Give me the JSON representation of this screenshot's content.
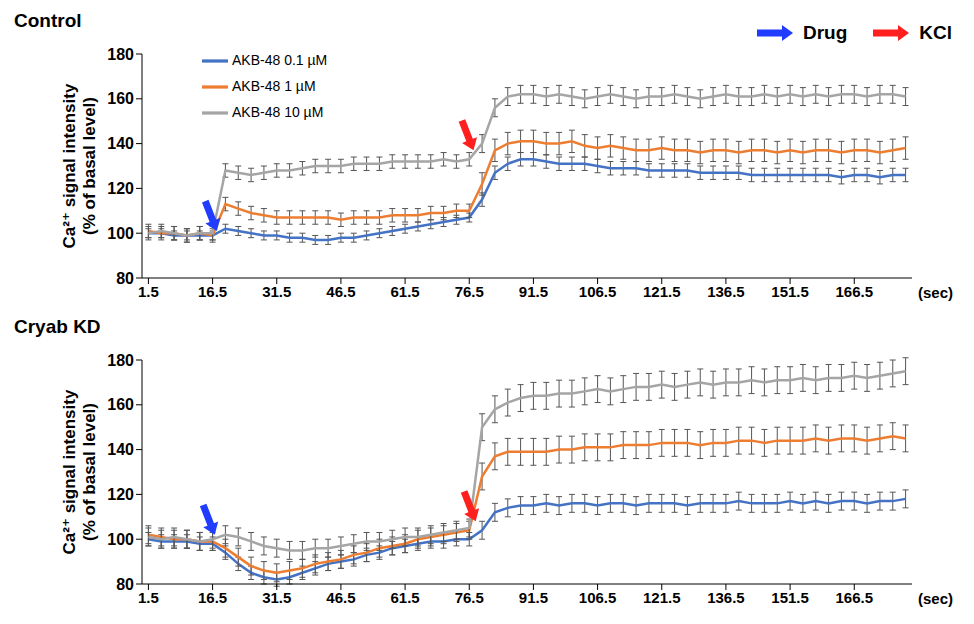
{
  "chart_data": [
    {
      "type": "line",
      "title": "Control",
      "x": [
        1.5,
        4.5,
        7.5,
        10.5,
        13.5,
        16.5,
        19.5,
        22.5,
        25.5,
        28.5,
        31.5,
        34.5,
        37.5,
        40.5,
        43.5,
        46.5,
        49.5,
        52.5,
        55.5,
        58.5,
        61.5,
        64.5,
        67.5,
        70.5,
        73.5,
        76.5,
        79.5,
        82.5,
        85.5,
        88.5,
        91.5,
        94.5,
        97.5,
        100.5,
        103.5,
        106.5,
        109.5,
        112.5,
        115.5,
        118.5,
        121.5,
        124.5,
        127.5,
        130.5,
        133.5,
        136.5,
        139.5,
        142.5,
        145.5,
        148.5,
        151.5,
        154.5,
        157.5,
        160.5,
        163.5,
        166.5,
        169.5,
        172.5,
        175.5,
        178.5
      ],
      "xlim": [
        0,
        180
      ],
      "xticks": [
        1.5,
        16.5,
        31.5,
        46.5,
        61.5,
        76.5,
        91.5,
        106.5,
        121.5,
        136.5,
        151.5,
        166.5
      ],
      "x_label": "(sec)",
      "y_label": [
        "Ca²⁺ signal intensity",
        "(% of basal level)"
      ],
      "ylim": [
        80,
        180
      ],
      "yticks": [
        80,
        100,
        120,
        140,
        160,
        180
      ],
      "legend": "upper left",
      "series": [
        {
          "name": "AKB-48 0.1 µM",
          "color": "#4472c4",
          "values": [
            100,
            100,
            99,
            99,
            99,
            99,
            102,
            101,
            100,
            99,
            99,
            98,
            98,
            97,
            97,
            98,
            98,
            99,
            100,
            101,
            102,
            103,
            104,
            105,
            106,
            107,
            115,
            127,
            131,
            133,
            133,
            132,
            131,
            131,
            131,
            130,
            129,
            129,
            129,
            128,
            128,
            128,
            128,
            127,
            127,
            127,
            127,
            126,
            126,
            126,
            126,
            126,
            126,
            126,
            125,
            126,
            126,
            125,
            126,
            126
          ],
          "errors": [
            2,
            2,
            2,
            2,
            2,
            2,
            2,
            2,
            2,
            2,
            2,
            2,
            2,
            2,
            2,
            2,
            2,
            2,
            2,
            2,
            2,
            2,
            2,
            2,
            2,
            2,
            3,
            3,
            3,
            3,
            3,
            3,
            3,
            3,
            3,
            3,
            3,
            3,
            3,
            3,
            3,
            3,
            3,
            3,
            3,
            3,
            3,
            3,
            3,
            3,
            3,
            3,
            3,
            3,
            3,
            3,
            3,
            3,
            3,
            3
          ]
        },
        {
          "name": "AKB-48 1 µM",
          "color": "#ed7d31",
          "values": [
            101,
            100,
            100,
            99,
            100,
            99,
            113,
            111,
            109,
            108,
            107,
            107,
            107,
            107,
            107,
            106,
            107,
            107,
            107,
            108,
            108,
            108,
            109,
            109,
            110,
            110,
            122,
            137,
            140,
            141,
            141,
            140,
            140,
            141,
            139,
            138,
            139,
            138,
            137,
            137,
            138,
            137,
            137,
            136,
            137,
            137,
            136,
            137,
            137,
            136,
            137,
            136,
            137,
            137,
            136,
            137,
            137,
            136,
            137,
            138
          ],
          "errors": [
            3,
            3,
            3,
            3,
            3,
            3,
            3,
            3,
            3,
            3,
            3,
            3,
            3,
            3,
            3,
            3,
            3,
            3,
            3,
            3,
            3,
            3,
            3,
            3,
            3,
            3,
            5,
            5,
            5,
            5,
            5,
            5,
            5,
            5,
            5,
            5,
            5,
            5,
            5,
            5,
            5,
            5,
            5,
            5,
            5,
            5,
            5,
            5,
            5,
            5,
            5,
            5,
            5,
            5,
            5,
            5,
            5,
            5,
            5,
            5
          ]
        },
        {
          "name": "AKB-48 10 µM",
          "color": "#a5a5a5",
          "values": [
            100,
            101,
            100,
            99,
            100,
            100,
            128,
            127,
            126,
            127,
            128,
            128,
            129,
            130,
            130,
            130,
            131,
            131,
            131,
            132,
            132,
            132,
            132,
            133,
            132,
            133,
            140,
            156,
            161,
            162,
            162,
            161,
            162,
            161,
            160,
            161,
            162,
            161,
            160,
            161,
            161,
            162,
            161,
            160,
            161,
            162,
            161,
            161,
            162,
            161,
            162,
            161,
            162,
            161,
            162,
            162,
            161,
            162,
            162,
            161
          ],
          "errors": [
            3,
            3,
            3,
            3,
            3,
            3,
            3,
            3,
            3,
            3,
            3,
            3,
            3,
            3,
            3,
            3,
            3,
            3,
            3,
            3,
            3,
            3,
            3,
            3,
            3,
            3,
            4,
            4,
            4,
            4,
            4,
            4,
            4,
            4,
            4,
            4,
            4,
            4,
            4,
            4,
            4,
            4,
            4,
            4,
            4,
            4,
            4,
            4,
            4,
            4,
            4,
            4,
            4,
            4,
            4,
            4,
            4,
            4,
            4,
            4
          ]
        }
      ],
      "events": [
        {
          "marker": "Drug",
          "x": 17.5,
          "y": 101
        },
        {
          "marker": "KCl",
          "x": 77.5,
          "y": 137
        }
      ]
    },
    {
      "type": "line",
      "title": "Cryab KD",
      "x": [
        1.5,
        4.5,
        7.5,
        10.5,
        13.5,
        16.5,
        19.5,
        22.5,
        25.5,
        28.5,
        31.5,
        34.5,
        37.5,
        40.5,
        43.5,
        46.5,
        49.5,
        52.5,
        55.5,
        58.5,
        61.5,
        64.5,
        67.5,
        70.5,
        73.5,
        76.5,
        79.5,
        82.5,
        85.5,
        88.5,
        91.5,
        94.5,
        97.5,
        100.5,
        103.5,
        106.5,
        109.5,
        112.5,
        115.5,
        118.5,
        121.5,
        124.5,
        127.5,
        130.5,
        133.5,
        136.5,
        139.5,
        142.5,
        145.5,
        148.5,
        151.5,
        154.5,
        157.5,
        160.5,
        163.5,
        166.5,
        169.5,
        172.5,
        175.5,
        178.5
      ],
      "xlim": [
        0,
        180
      ],
      "xticks": [
        1.5,
        16.5,
        31.5,
        46.5,
        61.5,
        76.5,
        91.5,
        106.5,
        121.5,
        136.5,
        151.5,
        166.5
      ],
      "x_label": "(sec)",
      "y_label": [
        "Ca²⁺ signal intensity",
        "(% of basal level)"
      ],
      "ylim": [
        80,
        180
      ],
      "yticks": [
        80,
        100,
        120,
        140,
        160,
        180
      ],
      "series": [
        {
          "name": "AKB-48 0.1 µM",
          "color": "#4472c4",
          "values": [
            100,
            99,
            99,
            99,
            98,
            98,
            94,
            89,
            85,
            83,
            82,
            83,
            85,
            87,
            89,
            90,
            91,
            93,
            94,
            96,
            97,
            98,
            99,
            99,
            100,
            100,
            104,
            112,
            114,
            115,
            115,
            116,
            115,
            116,
            116,
            115,
            116,
            116,
            115,
            116,
            116,
            116,
            115,
            116,
            116,
            116,
            117,
            116,
            116,
            116,
            117,
            116,
            117,
            116,
            117,
            117,
            116,
            117,
            117,
            118
          ],
          "errors": [
            3,
            3,
            3,
            3,
            3,
            3,
            3,
            3,
            3,
            3,
            3,
            3,
            3,
            3,
            3,
            3,
            3,
            3,
            3,
            3,
            3,
            3,
            3,
            3,
            3,
            3,
            4,
            4,
            4,
            4,
            4,
            4,
            4,
            4,
            4,
            4,
            4,
            4,
            4,
            4,
            4,
            4,
            4,
            4,
            4,
            4,
            4,
            4,
            4,
            4,
            4,
            4,
            4,
            4,
            4,
            4,
            4,
            4,
            4,
            4
          ]
        },
        {
          "name": "AKB-48 1 µM",
          "color": "#ed7d31",
          "values": [
            102,
            101,
            100,
            100,
            99,
            99,
            96,
            92,
            88,
            86,
            85,
            86,
            87,
            89,
            90,
            91,
            93,
            94,
            96,
            97,
            98,
            100,
            101,
            102,
            103,
            104,
            128,
            137,
            139,
            139,
            139,
            139,
            140,
            140,
            141,
            141,
            141,
            142,
            142,
            142,
            143,
            143,
            143,
            142,
            143,
            143,
            144,
            144,
            143,
            144,
            144,
            144,
            145,
            144,
            145,
            145,
            144,
            145,
            146,
            145
          ],
          "errors": [
            4,
            4,
            4,
            4,
            4,
            4,
            4,
            4,
            4,
            4,
            4,
            4,
            4,
            4,
            4,
            4,
            4,
            4,
            4,
            4,
            4,
            4,
            4,
            4,
            4,
            4,
            6,
            6,
            6,
            6,
            6,
            6,
            6,
            6,
            6,
            6,
            6,
            6,
            6,
            6,
            6,
            6,
            6,
            6,
            6,
            6,
            6,
            6,
            6,
            6,
            6,
            6,
            6,
            6,
            6,
            6,
            6,
            6,
            6,
            6
          ]
        },
        {
          "name": "AKB-48 10 µM",
          "color": "#a5a5a5",
          "values": [
            101,
            100,
            101,
            100,
            99,
            100,
            102,
            101,
            99,
            97,
            96,
            95,
            95,
            96,
            96,
            97,
            98,
            99,
            99,
            100,
            101,
            101,
            102,
            103,
            104,
            105,
            150,
            158,
            161,
            163,
            164,
            164,
            165,
            165,
            166,
            167,
            166,
            167,
            168,
            168,
            169,
            168,
            169,
            170,
            169,
            170,
            170,
            171,
            170,
            171,
            171,
            172,
            171,
            172,
            172,
            173,
            172,
            173,
            174,
            175
          ],
          "errors": [
            4,
            4,
            4,
            4,
            4,
            4,
            4,
            4,
            4,
            4,
            4,
            4,
            4,
            4,
            4,
            4,
            4,
            4,
            4,
            4,
            4,
            4,
            4,
            4,
            4,
            4,
            6,
            6,
            6,
            6,
            6,
            6,
            6,
            6,
            6,
            6,
            6,
            6,
            6,
            6,
            6,
            6,
            6,
            6,
            6,
            6,
            6,
            6,
            6,
            6,
            6,
            6,
            6,
            6,
            6,
            6,
            6,
            6,
            6,
            6
          ]
        }
      ],
      "events": [
        {
          "marker": "Drug",
          "x": 17,
          "y": 102
        },
        {
          "marker": "KCl",
          "x": 78,
          "y": 108
        }
      ]
    }
  ],
  "arrow_legend": [
    {
      "name": "Drug",
      "color": "#1f3cff"
    },
    {
      "name": "KCl",
      "color": "#ff1f1f"
    }
  ]
}
